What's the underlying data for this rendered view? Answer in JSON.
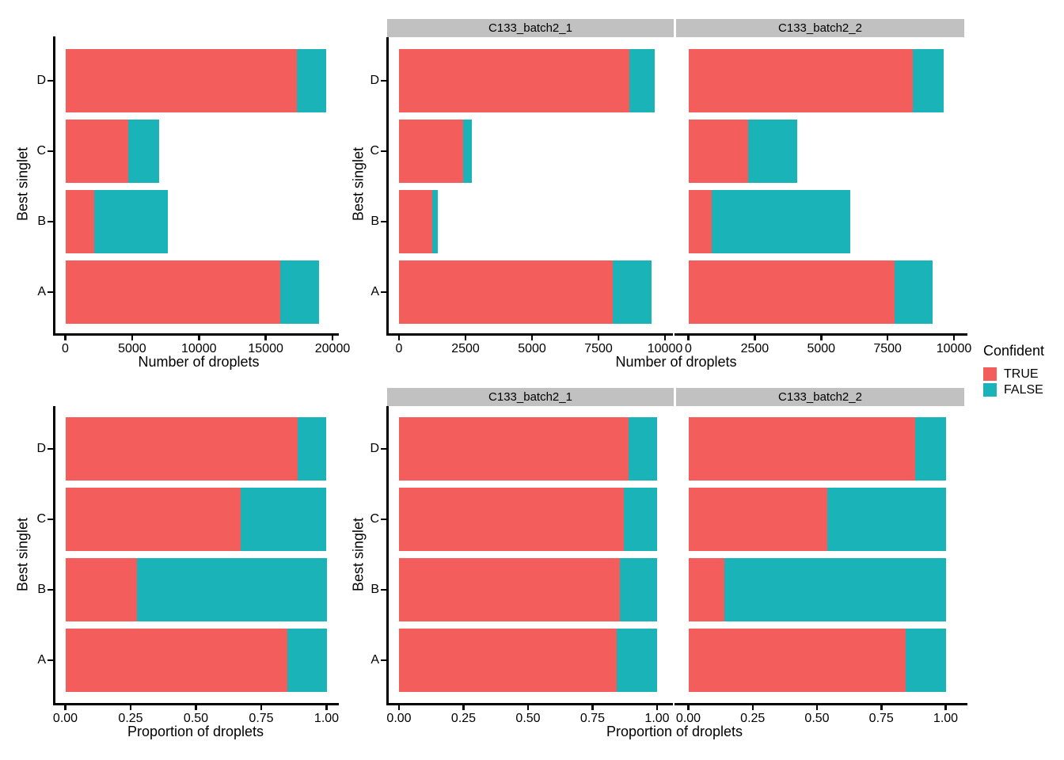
{
  "colors": {
    "true_fill": "#F35D5B",
    "false_fill": "#1AB3B7",
    "strip_fill": "#C1C1C1",
    "axis": "#000000",
    "text": "#000000"
  },
  "legend": {
    "title": "Confident",
    "entries": [
      {
        "label": "TRUE",
        "color": "#F35D5B"
      },
      {
        "label": "FALSE",
        "color": "#1AB3B7"
      }
    ]
  },
  "facets": [
    "C133_batch2_1",
    "C133_batch2_2"
  ],
  "chart_data": [
    {
      "id": "counts-combined",
      "type": "bar",
      "orientation": "horizontal",
      "stacked": true,
      "facet": null,
      "categories": [
        "D",
        "C",
        "B",
        "A"
      ],
      "series": [
        {
          "name": "TRUE",
          "color": "#F35D5B",
          "values": [
            17350,
            4700,
            2150,
            16100
          ]
        },
        {
          "name": "FALSE",
          "color": "#1AB3B7",
          "values": [
            2150,
            2300,
            5550,
            2900
          ]
        }
      ],
      "xlabel": "Number of droplets",
      "ylabel": "Best singlet",
      "xlim": [
        0,
        20000
      ],
      "xtick_values": [
        0,
        5000,
        10000,
        15000,
        20000
      ],
      "xtick_labels": [
        "0",
        "5000",
        "10000",
        "15000",
        "20000"
      ],
      "grid": false
    },
    {
      "id": "counts-C133_batch2_1",
      "type": "bar",
      "orientation": "horizontal",
      "stacked": true,
      "facet": "C133_batch2_1",
      "categories": [
        "D",
        "C",
        "B",
        "A"
      ],
      "series": [
        {
          "name": "TRUE",
          "color": "#F35D5B",
          "values": [
            8650,
            2400,
            1250,
            8050
          ]
        },
        {
          "name": "FALSE",
          "color": "#1AB3B7",
          "values": [
            950,
            350,
            220,
            1450
          ]
        }
      ],
      "xlabel": "Number of droplets",
      "ylabel": "Best singlet",
      "xlim": [
        0,
        10000
      ],
      "xtick_values": [
        0,
        2500,
        5000,
        7500,
        10000
      ],
      "xtick_labels": [
        "0",
        "2500",
        "5000",
        "7500",
        "10000"
      ],
      "grid": false
    },
    {
      "id": "counts-C133_batch2_2",
      "type": "bar",
      "orientation": "horizontal",
      "stacked": true,
      "facet": "C133_batch2_2",
      "categories": [
        "D",
        "C",
        "B",
        "A"
      ],
      "series": [
        {
          "name": "TRUE",
          "color": "#F35D5B",
          "values": [
            8450,
            2250,
            870,
            7750
          ]
        },
        {
          "name": "FALSE",
          "color": "#1AB3B7",
          "values": [
            1150,
            1850,
            5230,
            1450
          ]
        }
      ],
      "xlabel": "Number of droplets",
      "ylabel": "Best singlet",
      "xlim": [
        0,
        10000
      ],
      "xtick_values": [
        0,
        2500,
        5000,
        7500,
        10000
      ],
      "xtick_labels": [
        "0",
        "2500",
        "5000",
        "7500",
        "10000"
      ],
      "grid": false
    },
    {
      "id": "proportion-combined",
      "type": "bar",
      "orientation": "horizontal",
      "stacked": true,
      "facet": null,
      "categories": [
        "D",
        "C",
        "B",
        "A"
      ],
      "series": [
        {
          "name": "TRUE",
          "color": "#F35D5B",
          "values": [
            0.89,
            0.67,
            0.275,
            0.85
          ]
        },
        {
          "name": "FALSE",
          "color": "#1AB3B7",
          "values": [
            0.11,
            0.33,
            0.725,
            0.15
          ]
        }
      ],
      "xlabel": "Proportion of droplets",
      "ylabel": "Best singlet",
      "xlim": [
        0,
        1
      ],
      "xtick_values": [
        0,
        0.25,
        0.5,
        0.75,
        1
      ],
      "xtick_labels": [
        "0.00",
        "0.25",
        "0.50",
        "0.75",
        "1.00"
      ],
      "grid": false
    },
    {
      "id": "proportion-C133_batch2_1",
      "type": "bar",
      "orientation": "horizontal",
      "stacked": true,
      "facet": "C133_batch2_1",
      "categories": [
        "D",
        "C",
        "B",
        "A"
      ],
      "series": [
        {
          "name": "TRUE",
          "color": "#F35D5B",
          "values": [
            0.89,
            0.87,
            0.855,
            0.845
          ]
        },
        {
          "name": "FALSE",
          "color": "#1AB3B7",
          "values": [
            0.11,
            0.13,
            0.145,
            0.155
          ]
        }
      ],
      "xlabel": "Proportion of droplets",
      "ylabel": "Best singlet",
      "xlim": [
        0,
        1
      ],
      "xtick_values": [
        0,
        0.25,
        0.5,
        0.75,
        1
      ],
      "xtick_labels": [
        "0.00",
        "0.25",
        "0.50",
        "0.75",
        "1.00"
      ],
      "grid": false
    },
    {
      "id": "proportion-C133_batch2_2",
      "type": "bar",
      "orientation": "horizontal",
      "stacked": true,
      "facet": "C133_batch2_2",
      "categories": [
        "D",
        "C",
        "B",
        "A"
      ],
      "series": [
        {
          "name": "TRUE",
          "color": "#F35D5B",
          "values": [
            0.88,
            0.54,
            0.14,
            0.845
          ]
        },
        {
          "name": "FALSE",
          "color": "#1AB3B7",
          "values": [
            0.12,
            0.46,
            0.86,
            0.155
          ]
        }
      ],
      "xlabel": "Proportion of droplets",
      "ylabel": "Best singlet",
      "xlim": [
        0,
        1
      ],
      "xtick_values": [
        0,
        0.25,
        0.5,
        0.75,
        1
      ],
      "xtick_labels": [
        "0.00",
        "0.25",
        "0.50",
        "0.75",
        "1.00"
      ],
      "grid": false
    }
  ]
}
